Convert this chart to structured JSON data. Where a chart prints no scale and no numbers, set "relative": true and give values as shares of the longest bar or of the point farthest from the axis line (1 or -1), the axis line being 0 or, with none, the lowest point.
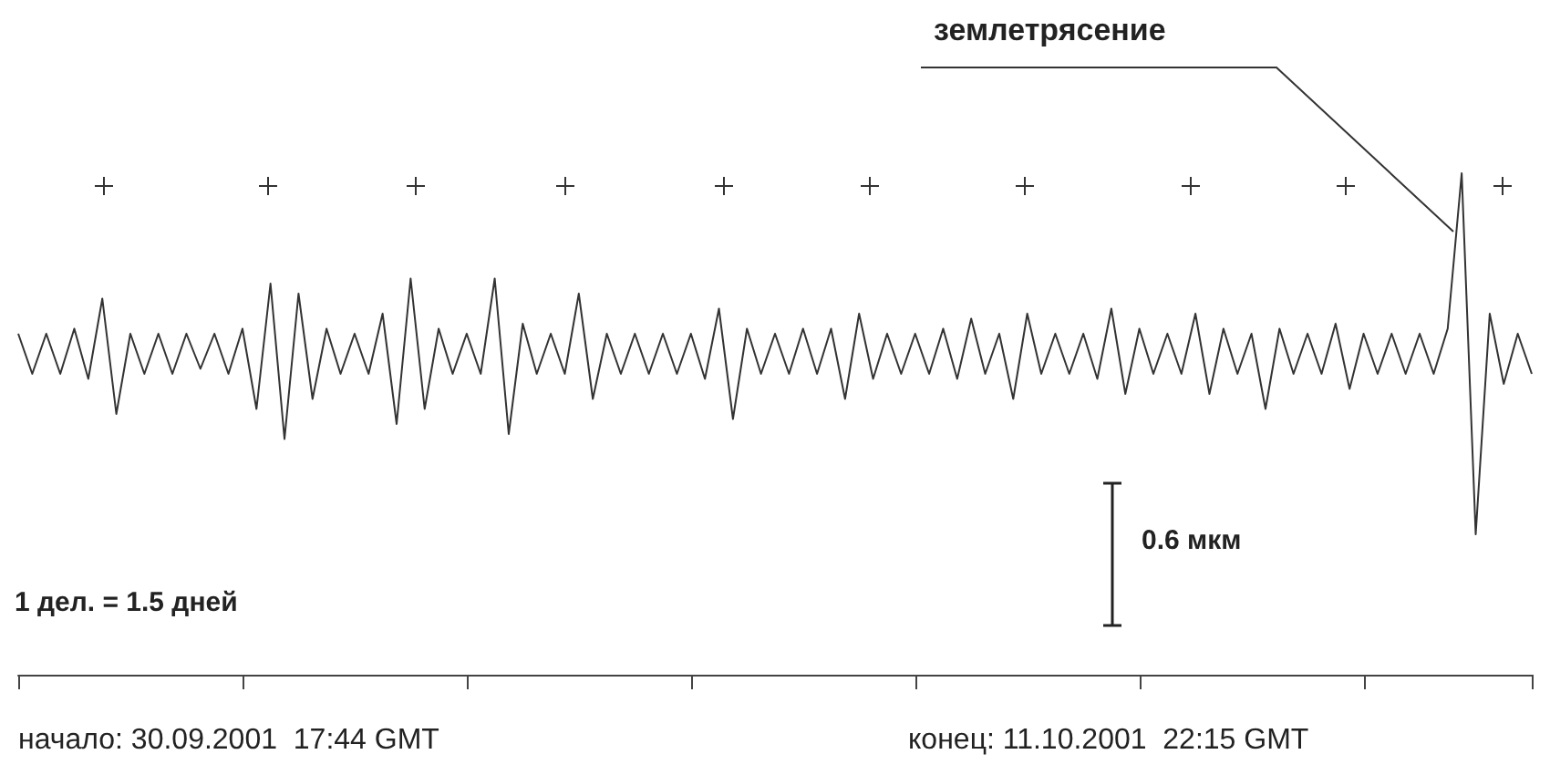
{
  "chart_data": {
    "type": "line",
    "relative": true,
    "categories": [
      null,
      null,
      null,
      null,
      null,
      null,
      null,
      null,
      null,
      null,
      null,
      null,
      null,
      null,
      null,
      null,
      null,
      null,
      null,
      null,
      null,
      null,
      null,
      null,
      null,
      null,
      null,
      null,
      null,
      null,
      null,
      null,
      null,
      null,
      null,
      null,
      null,
      null,
      null,
      null,
      null,
      null,
      null,
      null,
      null,
      null,
      null,
      null,
      null,
      null,
      null,
      null,
      null,
      null,
      null,
      null,
      null,
      null,
      null,
      null,
      null,
      null,
      null,
      null,
      null,
      null,
      null,
      null,
      null,
      null,
      null,
      null,
      null,
      null,
      null,
      null,
      null,
      null,
      null,
      null,
      null,
      null,
      null,
      null,
      null,
      null,
      null,
      null,
      null,
      null,
      null,
      null,
      null,
      null,
      null,
      null,
      null,
      null,
      null,
      null,
      null,
      null,
      null,
      null,
      null,
      null,
      null,
      null,
      null
    ],
    "series": [
      {
        "color": "#333333",
        "values": [
          0.68,
          0.6,
          0.68,
          0.6,
          0.69,
          0.59,
          0.75,
          0.52,
          0.68,
          0.6,
          0.68,
          0.6,
          0.68,
          0.61,
          0.68,
          0.6,
          0.69,
          0.53,
          0.78,
          0.47,
          0.76,
          0.55,
          0.69,
          0.6,
          0.68,
          0.6,
          0.72,
          0.5,
          0.79,
          0.53,
          0.69,
          0.6,
          0.68,
          0.6,
          0.79,
          0.48,
          0.7,
          0.6,
          0.68,
          0.6,
          0.76,
          0.55,
          0.68,
          0.6,
          0.68,
          0.6,
          0.68,
          0.6,
          0.68,
          0.59,
          0.73,
          0.51,
          0.69,
          0.6,
          0.68,
          0.6,
          0.69,
          0.6,
          0.69,
          0.55,
          0.72,
          0.59,
          0.68,
          0.6,
          0.68,
          0.6,
          0.69,
          0.59,
          0.71,
          0.6,
          0.68,
          0.55,
          0.72,
          0.6,
          0.68,
          0.6,
          0.68,
          0.59,
          0.73,
          0.56,
          0.69,
          0.6,
          0.68,
          0.6,
          0.72,
          0.56,
          0.69,
          0.6,
          0.68,
          0.53,
          0.69,
          0.6,
          0.68,
          0.6,
          0.7,
          0.57,
          0.68,
          0.6,
          0.68,
          0.6,
          0.68,
          0.6,
          0.69,
          1,
          0.28,
          0.72,
          0.58,
          0.68,
          0.6
        ]
      }
    ],
    "annotations": [
      "землетрясение",
      "0.6 мкм",
      "1 дел. = 1.5 дней",
      "начало: 30.09.2001  17:44 GMT",
      "конец: 11.10.2001  22:15 GMT"
    ],
    "grid": false,
    "line_style": "solid"
  }
}
